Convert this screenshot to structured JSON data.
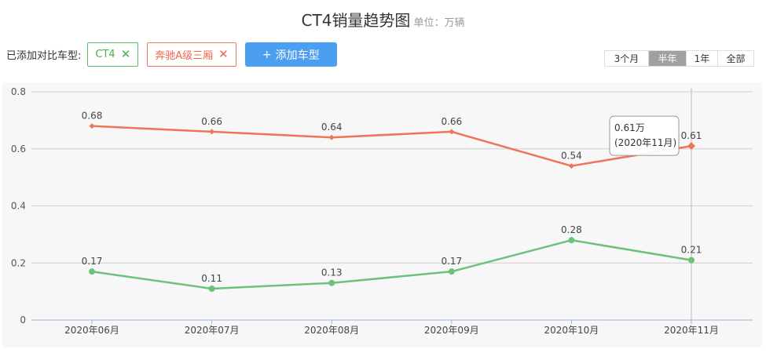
{
  "header": {
    "title": "CT4销量趋势图",
    "unit": "单位：万辆"
  },
  "compare": {
    "label": "已添加对比车型:",
    "tags": [
      {
        "label": "CT4",
        "remove_icon": "close-icon",
        "color": "#4caf50"
      },
      {
        "label": "奔驰A级三厢",
        "remove_icon": "close-icon",
        "color": "#f0664f"
      }
    ],
    "add_button": {
      "plus": "+",
      "label": "添加车型"
    }
  },
  "range": {
    "options": [
      "3个月",
      "半年",
      "1年",
      "全部"
    ],
    "selected": "半年"
  },
  "tooltip": {
    "value": "0.61万",
    "period": "(2020年11月)"
  },
  "chart_data": {
    "type": "line",
    "title": "CT4销量趋势图",
    "unit": "单位：万辆",
    "categories": [
      "2020年06月",
      "2020年07月",
      "2020年08月",
      "2020年09月",
      "2020年10月",
      "2020年11月"
    ],
    "ylim": [
      0,
      0.8
    ],
    "yticks": [
      "0",
      "0.2",
      "0.4",
      "0.6",
      "0.8"
    ],
    "grid": true,
    "series": [
      {
        "name": "奔驰A级三厢",
        "color": "#f0735c",
        "marker": "diamond",
        "values": [
          0.68,
          0.66,
          0.64,
          0.66,
          0.54,
          0.61
        ],
        "labels": [
          "0.68",
          "0.66",
          "0.64",
          "0.66",
          "0.54",
          "0.61"
        ]
      },
      {
        "name": "CT4",
        "color": "#6cc27a",
        "marker": "circle",
        "values": [
          0.17,
          0.11,
          0.13,
          0.17,
          0.28,
          0.21
        ],
        "labels": [
          "0.17",
          "0.11",
          "0.13",
          "0.17",
          "0.28",
          "0.21"
        ]
      }
    ]
  }
}
